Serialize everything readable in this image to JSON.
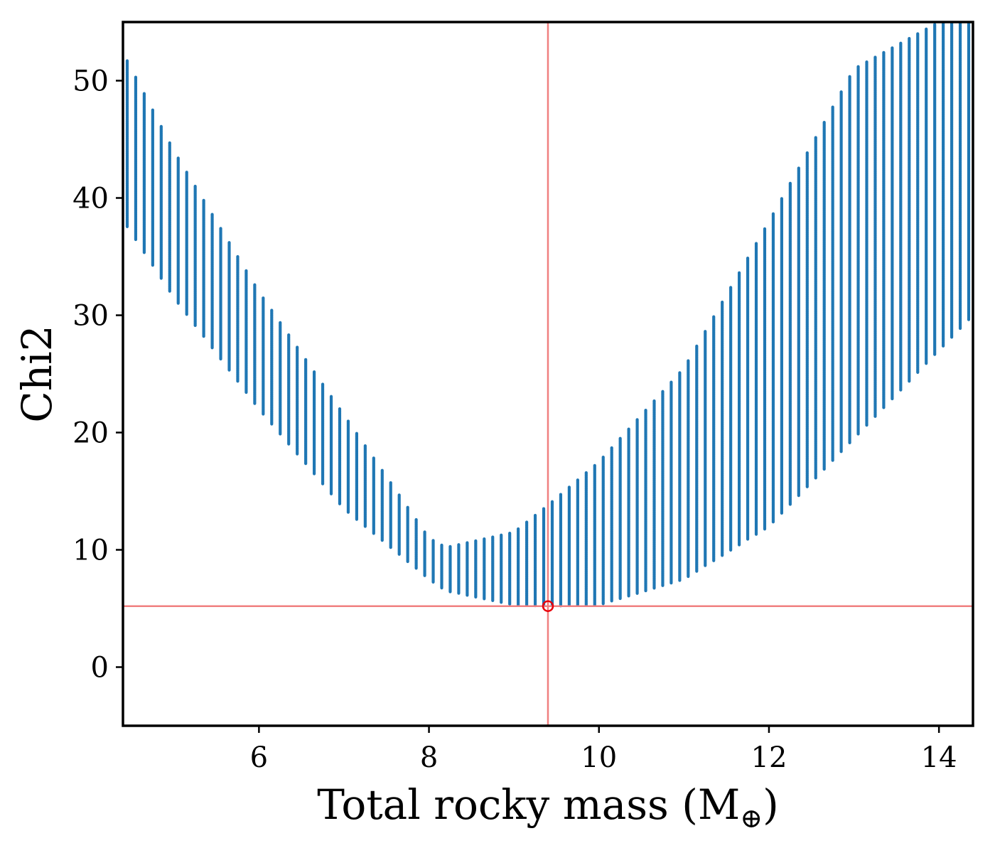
{
  "chart_data": {
    "type": "scatter",
    "title": "",
    "xlabel": "Total rocky mass (M",
    "xlabel_subscript": "⊕",
    "xlabel_close": ")",
    "ylabel": "Chi2",
    "xlim": [
      4.4,
      14.4
    ],
    "ylim": [
      -5,
      55
    ],
    "xticks": [
      6,
      8,
      10,
      12,
      14
    ],
    "yticks": [
      0,
      10,
      20,
      30,
      40,
      50
    ],
    "grid": false,
    "legend": "none",
    "colors": {
      "points": "#1f77b4",
      "best_fit": "#e8000b",
      "reference_lines": "#f08080"
    },
    "series": [
      {
        "kind": "vertical-point-columns",
        "x_start": 4.45,
        "x_end": 14.3,
        "x_step": 0.1,
        "column_ranges_sampled": [
          {
            "x": 4.5,
            "y": [
              37.0,
              51.0
            ]
          },
          {
            "x": 5.0,
            "y": [
              31.5,
              44.0
            ]
          },
          {
            "x": 6.0,
            "y": [
              22.0,
              32.0
            ]
          },
          {
            "x": 7.0,
            "y": [
              13.5,
              21.5
            ]
          },
          {
            "x": 8.0,
            "y": [
              7.5,
              11.0
            ]
          },
          {
            "x": 8.2,
            "y": [
              6.5,
              10.2
            ]
          },
          {
            "x": 9.0,
            "y": [
              5.3,
              11.5
            ]
          },
          {
            "x": 9.4,
            "y": [
              5.2,
              13.8
            ]
          },
          {
            "x": 10.0,
            "y": [
              5.3,
              17.5
            ]
          },
          {
            "x": 11.0,
            "y": [
              7.5,
              25.5
            ]
          },
          {
            "x": 12.0,
            "y": [
              12.0,
              38.0
            ]
          },
          {
            "x": 13.0,
            "y": [
              19.5,
              51.0
            ]
          },
          {
            "x": 14.0,
            "y": [
              27.0,
              55.0
            ]
          }
        ]
      }
    ],
    "best_fit": {
      "x": 9.4,
      "y": 5.2
    }
  }
}
